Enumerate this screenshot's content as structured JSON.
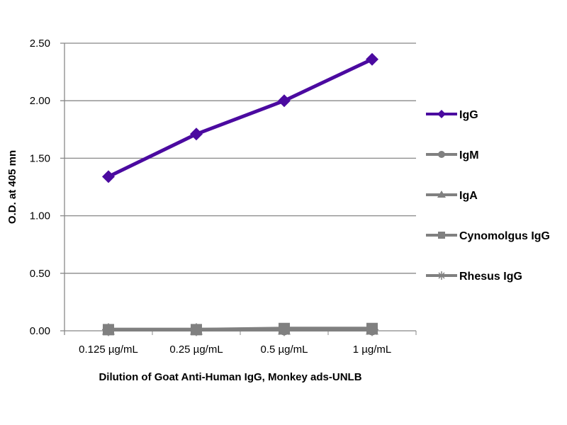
{
  "chart_data": {
    "type": "line",
    "title": "",
    "xlabel": "Dilution of Goat Anti-Human IgG, Monkey ads-UNLB",
    "ylabel": "O.D. at 405 mn",
    "categories": [
      "0.125 µg/mL",
      "0.25 µg/mL",
      "0.5 µg/mL",
      "1 µg/mL"
    ],
    "ylim": [
      0,
      2.5
    ],
    "yticks": [
      "0.00",
      "0.50",
      "1.00",
      "1.50",
      "2.00",
      "2.50"
    ],
    "grid": true,
    "legend_position": "right",
    "series": [
      {
        "name": "IgG",
        "values": [
          1.34,
          1.71,
          2.0,
          2.36
        ],
        "color": "#4b0aa0",
        "marker": "diamond"
      },
      {
        "name": "IgM",
        "values": [
          0.01,
          0.01,
          0.01,
          0.01
        ],
        "color": "#808080",
        "marker": "circle"
      },
      {
        "name": "IgA",
        "values": [
          0.01,
          0.01,
          0.01,
          0.01
        ],
        "color": "#808080",
        "marker": "triangle"
      },
      {
        "name": "Cynomolgus IgG",
        "values": [
          0.01,
          0.01,
          0.02,
          0.02
        ],
        "color": "#808080",
        "marker": "square"
      },
      {
        "name": "Rhesus IgG",
        "values": [
          0.01,
          0.01,
          0.01,
          0.01
        ],
        "color": "#808080",
        "marker": "star"
      }
    ]
  }
}
